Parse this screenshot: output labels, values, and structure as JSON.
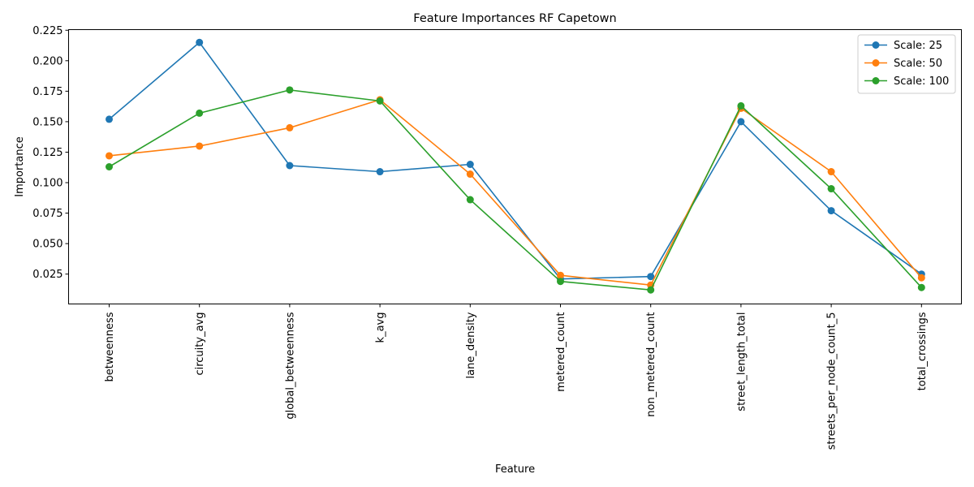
{
  "chart_data": {
    "type": "line",
    "title": "Feature Importances RF Capetown",
    "xlabel": "Feature",
    "ylabel": "Importance",
    "categories": [
      "betweenness",
      "circuity_avg",
      "global_betweenness",
      "k_avg",
      "lane_density",
      "metered_count",
      "non_metered_count",
      "street_length_total",
      "streets_per_node_count_5",
      "total_crossings"
    ],
    "ylim": [
      0.0005,
      0.2255
    ],
    "yticks": [
      0.025,
      0.05,
      0.075,
      0.1,
      0.125,
      0.15,
      0.175,
      0.2,
      0.225
    ],
    "ytick_labels": [
      "0.025",
      "0.050",
      "0.075",
      "0.100",
      "0.125",
      "0.150",
      "0.175",
      "0.200",
      "0.225"
    ],
    "grid": false,
    "legend_position": "upper right",
    "series": [
      {
        "name": "Scale: 25",
        "color": "#1f77b4",
        "marker": "circle",
        "values": [
          0.152,
          0.215,
          0.114,
          0.109,
          0.115,
          0.021,
          0.023,
          0.15,
          0.077,
          0.025
        ]
      },
      {
        "name": "Scale: 50",
        "color": "#ff7f0e",
        "marker": "circle",
        "values": [
          0.122,
          0.13,
          0.145,
          0.168,
          0.107,
          0.024,
          0.016,
          0.161,
          0.109,
          0.022
        ]
      },
      {
        "name": "Scale: 100",
        "color": "#2ca02c",
        "marker": "circle",
        "values": [
          0.113,
          0.157,
          0.176,
          0.167,
          0.086,
          0.019,
          0.012,
          0.163,
          0.095,
          0.014
        ]
      }
    ]
  }
}
